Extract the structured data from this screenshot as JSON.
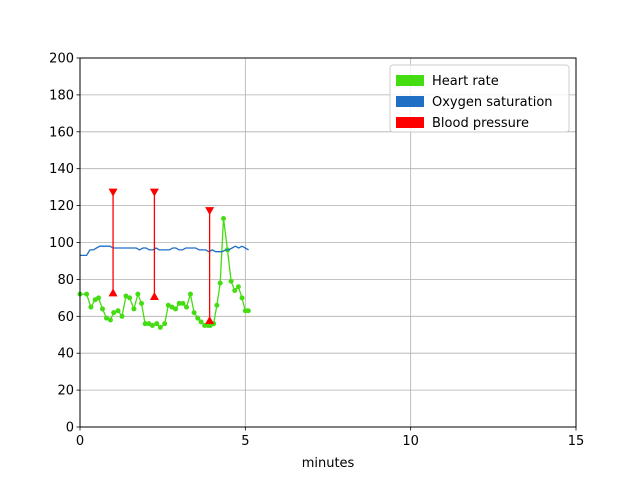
{
  "chart_data": {
    "type": "line",
    "title": "",
    "xlabel": "minutes",
    "ylabel": "",
    "xlim": [
      0,
      15
    ],
    "ylim": [
      0,
      200
    ],
    "x_ticks": [
      0,
      5,
      10,
      15
    ],
    "y_ticks": [
      0,
      20,
      40,
      60,
      80,
      100,
      120,
      140,
      160,
      180,
      200
    ],
    "grid": true,
    "legend_position": "top-right",
    "series": [
      {
        "name": "Heart rate",
        "kind": "line-markers",
        "color": "#44dd11",
        "x": [
          0.0,
          0.2,
          0.33,
          0.46,
          0.56,
          0.68,
          0.8,
          0.92,
          1.02,
          1.15,
          1.27,
          1.39,
          1.5,
          1.63,
          1.75,
          1.86,
          1.97,
          2.08,
          2.19,
          2.32,
          2.43,
          2.56,
          2.67,
          2.78,
          2.89,
          3.0,
          3.11,
          3.22,
          3.34,
          3.45,
          3.56,
          3.66,
          3.77,
          3.87,
          3.94,
          4.04,
          4.14,
          4.24,
          4.34,
          4.46,
          4.57,
          4.68,
          4.79,
          4.9,
          5.0,
          5.09
        ],
        "values": [
          72,
          72,
          65,
          69,
          70,
          64,
          59,
          58,
          62,
          63,
          60,
          71,
          70,
          64,
          72,
          67,
          56,
          56,
          55,
          56,
          54,
          56,
          66,
          65,
          64,
          67,
          67,
          65,
          72,
          62,
          59,
          57,
          55,
          55,
          55,
          56,
          66,
          78,
          113,
          96,
          79,
          74,
          76,
          70,
          63,
          63
        ]
      },
      {
        "name": "Oxygen saturation",
        "kind": "line",
        "color": "#1f6fc5",
        "x": [
          0.0,
          0.2,
          0.3,
          0.4,
          0.5,
          0.6,
          0.7,
          0.8,
          0.9,
          1.0,
          1.1,
          1.2,
          1.3,
          1.4,
          1.5,
          1.6,
          1.7,
          1.8,
          1.9,
          2.0,
          2.1,
          2.2,
          2.3,
          2.4,
          2.5,
          2.6,
          2.7,
          2.8,
          2.9,
          3.0,
          3.1,
          3.2,
          3.3,
          3.4,
          3.5,
          3.6,
          3.7,
          3.8,
          3.9,
          4.0,
          4.1,
          4.2,
          4.3,
          4.4,
          4.5,
          4.6,
          4.7,
          4.8,
          4.9,
          5.0,
          5.1
        ],
        "values": [
          93,
          93,
          96,
          96,
          97,
          98,
          98,
          98,
          98,
          97,
          97,
          97,
          97,
          97,
          97,
          97,
          97,
          96,
          97,
          97,
          96,
          96,
          97,
          96,
          96,
          96,
          96,
          97,
          97,
          96,
          96,
          97,
          97,
          97,
          97,
          96,
          96,
          96,
          95,
          96,
          95,
          95,
          95,
          96,
          96,
          97,
          98,
          97,
          98,
          97,
          96
        ]
      },
      {
        "name": "Blood pressure",
        "kind": "range-markers",
        "color": "#ff0000",
        "points": [
          {
            "x": 1.0,
            "systolic": 127,
            "diastolic": 73
          },
          {
            "x": 2.25,
            "systolic": 127,
            "diastolic": 71
          },
          {
            "x": 3.92,
            "systolic": 117,
            "diastolic": 58
          }
        ]
      }
    ]
  }
}
